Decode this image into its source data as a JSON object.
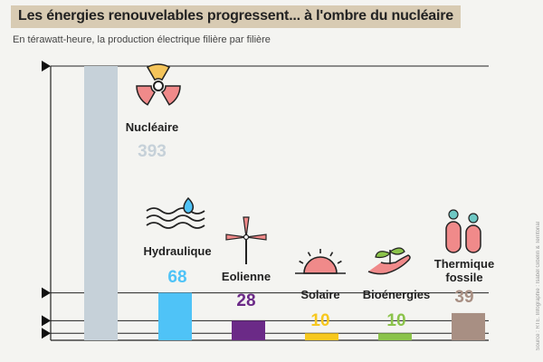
{
  "header": {
    "title": "Les énergies renouvelables progressent... à l'ombre du nucléaire",
    "subtitle": "En térawatt-heure, la production électrique filière par filière"
  },
  "source": "Source : RTE. Infographie : Isabel Gibelin & Territorial",
  "chart_data": {
    "type": "bar",
    "categories": [
      "Nucléaire",
      "Hydraulique",
      "Eolienne",
      "Solaire",
      "Bioénergies",
      "Thermique fossile"
    ],
    "values": [
      393,
      68,
      28,
      10,
      10,
      39
    ],
    "colors": [
      "#c6d1d9",
      "#4fc3f7",
      "#6b2a87",
      "#f7c81e",
      "#8bc34a",
      "#a88f83"
    ],
    "value_colors": [
      "#c6d1d9",
      "#4fc3f7",
      "#6b2a87",
      "#f7c81e",
      "#8bc34a",
      "#a88f83"
    ],
    "icons": [
      "radiation-icon",
      "water-wave-icon",
      "wind-turbine-icon",
      "sun-icon",
      "sprout-hand-icon",
      "gas-cylinder-icon"
    ],
    "ylim": [
      0,
      393
    ],
    "reference_lines": [
      393,
      68,
      28,
      10
    ],
    "grid": false
  }
}
